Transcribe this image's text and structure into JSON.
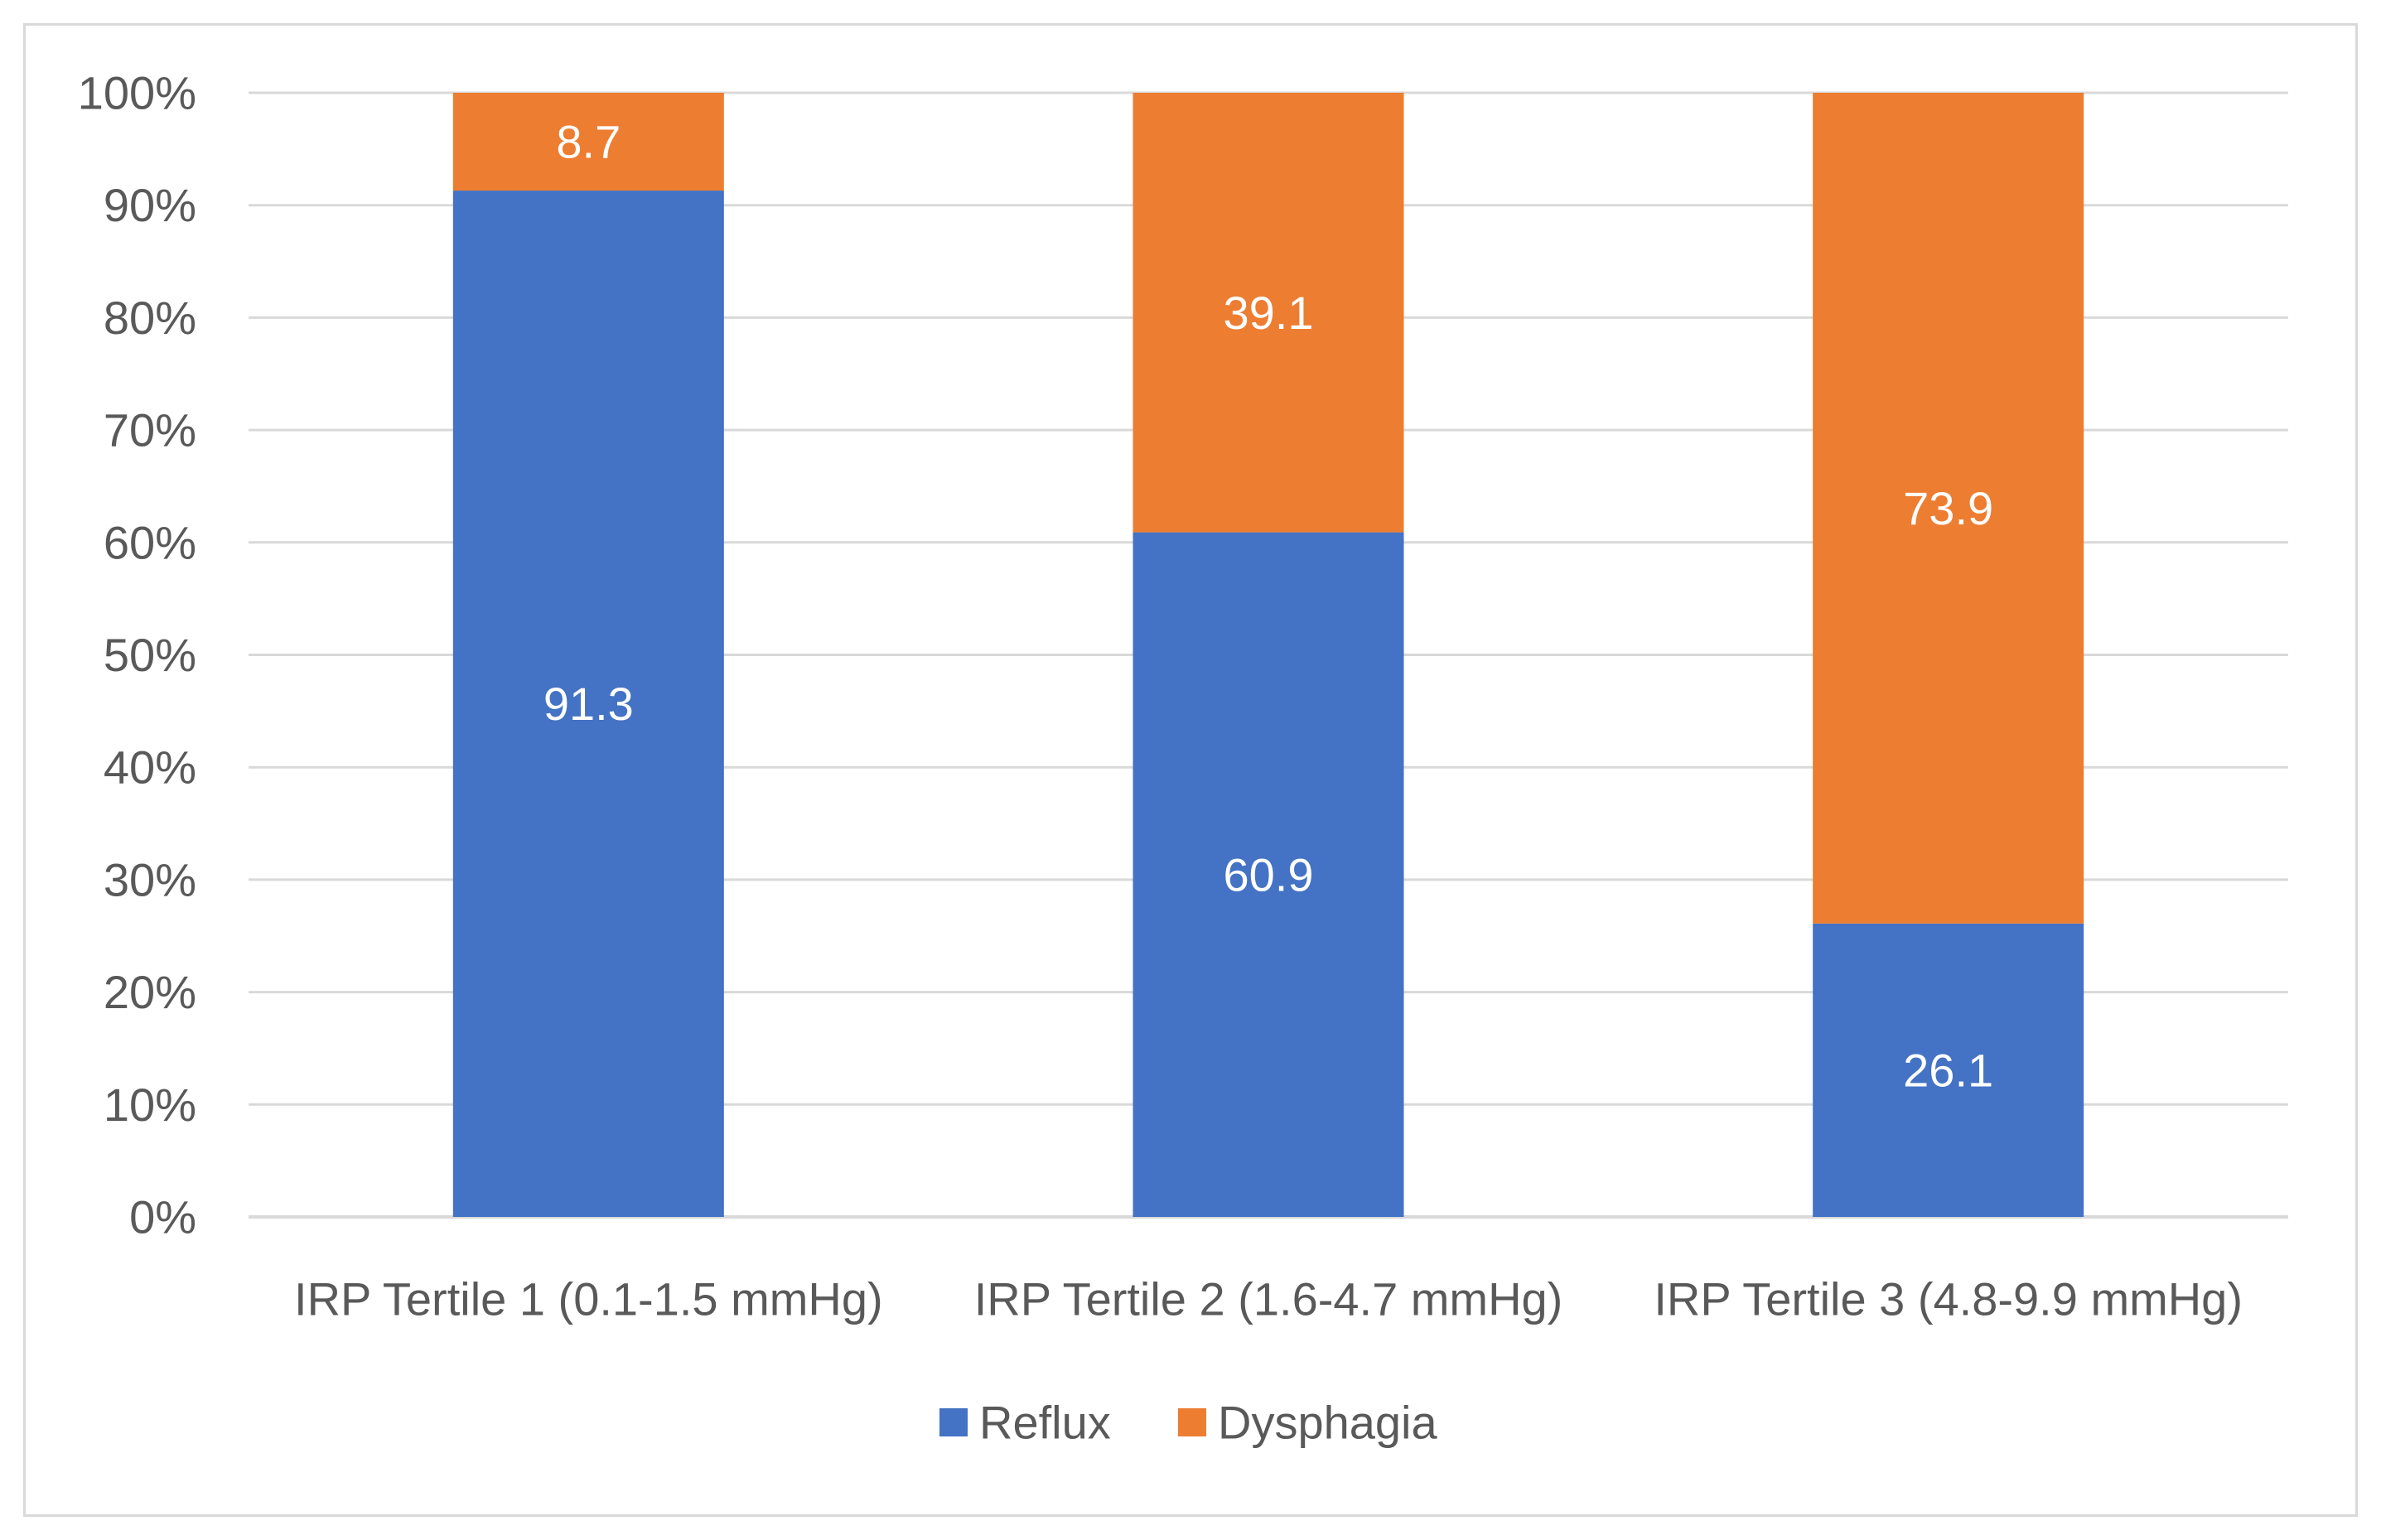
{
  "chart_data": {
    "type": "bar",
    "stacked": true,
    "title": "",
    "xlabel": "",
    "ylabel": "",
    "ylim": [
      0,
      100
    ],
    "yticks": [
      "0%",
      "10%",
      "20%",
      "30%",
      "40%",
      "50%",
      "60%",
      "70%",
      "80%",
      "90%",
      "100%"
    ],
    "grid": true,
    "legend_position": "bottom",
    "categories": [
      "IRP Tertile 1 (0.1-1.5 mmHg)",
      "IRP Tertile 2 (1.6-4.7 mmHg)",
      "IRP Tertile 3 (4.8-9.9 mmHg)"
    ],
    "series": [
      {
        "name": "Reflux",
        "color": "#4472c4",
        "values": [
          91.3,
          60.9,
          26.1
        ],
        "labels": [
          "91.3",
          "60.9",
          "26.1"
        ]
      },
      {
        "name": "Dysphagia",
        "color": "#ed7d31",
        "values": [
          8.7,
          39.1,
          73.9
        ],
        "labels": [
          "8.7",
          "39.1",
          "73.9"
        ]
      }
    ]
  }
}
